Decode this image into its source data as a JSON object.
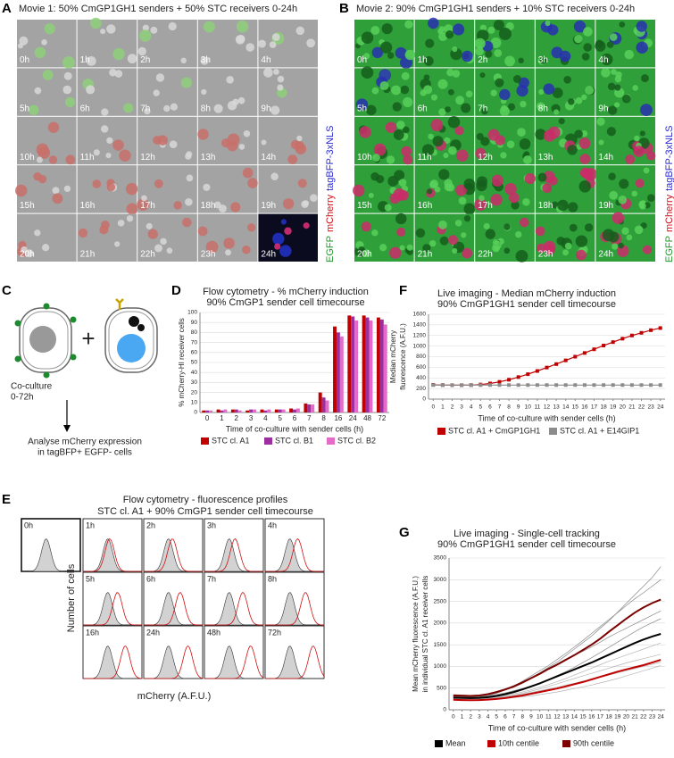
{
  "panel_A": {
    "letter": "A",
    "title": "Movie 1: 50% CmGP1GH1 senders + 50% STC receivers 0-24h",
    "frames": [
      "0h",
      "1h",
      "2h",
      "3h",
      "4h",
      "5h",
      "6h",
      "7h",
      "8h",
      "9h",
      "10h",
      "11h",
      "12h",
      "13h",
      "14h",
      "15h",
      "16h",
      "17h",
      "18h",
      "19h",
      "20h",
      "21h",
      "22h",
      "23h",
      "24h"
    ],
    "channels": [
      {
        "text": "EGFP",
        "color": "#1f9a2a"
      },
      {
        "text": "mCherry",
        "color": "#d0101a"
      },
      {
        "text": "tagBFP-3xNLS",
        "color": "#2a2ad0"
      }
    ]
  },
  "panel_B": {
    "letter": "B",
    "title": "Movie 2: 90% CmGP1GH1 senders + 10% STC receivers 0-24h",
    "frames": [
      "0h",
      "1h",
      "2h",
      "3h",
      "4h",
      "5h",
      "6h",
      "7h",
      "8h",
      "9h",
      "10h",
      "11h",
      "12h",
      "13h",
      "14h",
      "15h",
      "16h",
      "17h",
      "18h",
      "19h",
      "20h",
      "21h",
      "22h",
      "23h",
      "24h"
    ],
    "channels": [
      {
        "text": "EGFP",
        "color": "#1f9a2a"
      },
      {
        "text": "mCherry",
        "color": "#d0101a"
      },
      {
        "text": "tagBFP-3xNLS",
        "color": "#2a2ad0"
      }
    ]
  },
  "panel_C": {
    "letter": "C",
    "plus": "+",
    "step": [
      "Co-culture",
      "0-72h"
    ],
    "result": [
      "Analyse mCherry expression",
      "in tagBFP+ EGFP- cells"
    ]
  },
  "panel_E": {
    "letter": "E",
    "title": "Flow cytometry - fluorescence profiles",
    "subtitle": "STC cl. A1 + 90% CmGP1 sender cell timecourse",
    "timepoints": [
      "0h",
      "1h",
      "2h",
      "3h",
      "4h",
      "5h",
      "6h",
      "7h",
      "8h",
      "16h",
      "24h",
      "48h",
      "72h"
    ],
    "xlabel": "mCherry (A.F.U.)",
    "ylabel": "Number of cells"
  },
  "chart_data": [
    {
      "type": "bar",
      "panel": "D",
      "title": "Flow cytometry - % mCherry induction",
      "subtitle": "90% CmGP1 sender cell timecourse",
      "categories": [
        "0",
        "1",
        "2",
        "3",
        "4",
        "5",
        "6",
        "7",
        "8",
        "16",
        "24",
        "48",
        "72"
      ],
      "series": [
        {
          "name": "STC cl. A1",
          "color": "#c00000",
          "values": [
            2,
            3,
            3,
            2,
            3,
            3,
            4,
            9,
            20,
            86,
            97,
            97,
            95
          ]
        },
        {
          "name": "STC cl. B1",
          "color": "#9b2fa0",
          "values": [
            2,
            2,
            3,
            3,
            2,
            3,
            3,
            8,
            15,
            80,
            96,
            95,
            93
          ]
        },
        {
          "name": "STC cl. B2",
          "color": "#e46bc8",
          "values": [
            2,
            3,
            2,
            3,
            3,
            3,
            4,
            8,
            12,
            76,
            92,
            92,
            88
          ]
        }
      ],
      "ylim": [
        0,
        100
      ],
      "yticks": [
        0,
        10,
        20,
        30,
        40,
        50,
        60,
        70,
        80,
        90,
        100
      ],
      "ylabel": "% mCherry-HI receiver cells",
      "xlabel": "Time of co-culture with sender cells (h)"
    },
    {
      "type": "line",
      "panel": "F",
      "title": "Live imaging - Median mCherry induction",
      "subtitle": "90% CmGP1GH1 sender cell timecourse",
      "x": [
        0,
        1,
        2,
        3,
        4,
        5,
        6,
        7,
        8,
        9,
        10,
        11,
        12,
        13,
        14,
        15,
        16,
        17,
        18,
        19,
        20,
        21,
        22,
        23,
        24
      ],
      "series": [
        {
          "name": "STC cl. A1 + CmGP1GH1",
          "color": "#c00000",
          "values": [
            270,
            265,
            262,
            262,
            265,
            275,
            295,
            325,
            365,
            415,
            470,
            530,
            595,
            660,
            730,
            800,
            870,
            940,
            1010,
            1075,
            1140,
            1200,
            1250,
            1300,
            1340
          ]
        },
        {
          "name": "STC cl. A1 + E14GIP1",
          "color": "#8c8c8c",
          "values": [
            265,
            265,
            264,
            264,
            264,
            264,
            265,
            265,
            265,
            265,
            265,
            265,
            265,
            265,
            265,
            265,
            265,
            265,
            265,
            265,
            265,
            265,
            265,
            265,
            265
          ]
        }
      ],
      "xlim": [
        -0.5,
        24.5
      ],
      "xticks": [
        0,
        1,
        2,
        3,
        4,
        5,
        6,
        7,
        8,
        9,
        10,
        11,
        12,
        13,
        14,
        15,
        16,
        17,
        18,
        19,
        20,
        21,
        22,
        23,
        24
      ],
      "ylim": [
        0,
        1600
      ],
      "yticks": [
        0,
        200,
        400,
        600,
        800,
        1000,
        1200,
        1400,
        1600
      ],
      "markers": true,
      "ylabel_lines": [
        "Median mCherry",
        "fluorescence (A.F.U.)"
      ],
      "xlabel": "Time of co-culture with sender cells (h)"
    },
    {
      "type": "line",
      "panel": "G",
      "title": "Live imaging - Single-cell tracking",
      "subtitle": "90% CmGP1GH1 sender cell timecourse",
      "x": [
        0,
        1,
        2,
        3,
        4,
        5,
        6,
        7,
        8,
        9,
        10,
        11,
        12,
        13,
        14,
        15,
        16,
        17,
        18,
        19,
        20,
        21,
        22,
        23,
        24
      ],
      "series": [
        {
          "name": "Mean",
          "color": "#000000",
          "values": [
            280,
            275,
            270,
            275,
            290,
            320,
            360,
            410,
            470,
            540,
            610,
            690,
            770,
            850,
            930,
            1010,
            1090,
            1180,
            1270,
            1360,
            1450,
            1540,
            1620,
            1690,
            1750
          ]
        },
        {
          "name": "10th centile",
          "color": "#c00000",
          "values": [
            230,
            225,
            220,
            225,
            235,
            250,
            270,
            300,
            330,
            370,
            410,
            450,
            490,
            540,
            590,
            640,
            700,
            760,
            820,
            880,
            930,
            980,
            1030,
            1090,
            1150
          ]
        },
        {
          "name": "90th centile",
          "color": "#7b0000",
          "values": [
            330,
            325,
            320,
            330,
            360,
            410,
            470,
            540,
            630,
            730,
            830,
            940,
            1040,
            1150,
            1260,
            1380,
            1500,
            1640,
            1800,
            1950,
            2100,
            2240,
            2360,
            2460,
            2540
          ]
        }
      ],
      "cell_traces": [
        [
          300,
          290,
          280,
          300,
          330,
          380,
          450,
          520,
          610,
          720,
          850,
          980,
          1100,
          1250,
          1400,
          1550,
          1700,
          1880,
          2050,
          2250,
          2450,
          2650,
          2850,
          3050,
          3300
        ],
        [
          250,
          240,
          230,
          240,
          250,
          270,
          300,
          330,
          360,
          400,
          440,
          480,
          520,
          570,
          610,
          660,
          700,
          750,
          800,
          850,
          900,
          950,
          1000,
          1050,
          1100
        ],
        [
          350,
          340,
          330,
          340,
          370,
          420,
          480,
          560,
          650,
          740,
          850,
          960,
          1060,
          1170,
          1260,
          1350,
          1450,
          1560,
          1680,
          1780,
          1880,
          1980,
          2080,
          2180,
          2280
        ],
        [
          280,
          270,
          260,
          270,
          280,
          300,
          330,
          370,
          410,
          460,
          520,
          580,
          650,
          720,
          800,
          880,
          960,
          1040,
          1120,
          1190,
          1260,
          1330,
          1400,
          1470,
          1540
        ],
        [
          320,
          310,
          300,
          310,
          340,
          390,
          460,
          550,
          660,
          780,
          900,
          1020,
          1160,
          1300,
          1450,
          1600,
          1760,
          1920,
          2080,
          2240,
          2400,
          2560,
          2700,
          2850,
          3000
        ],
        [
          230,
          220,
          215,
          220,
          230,
          240,
          260,
          280,
          300,
          320,
          350,
          380,
          410,
          450,
          490,
          530,
          570,
          620,
          670,
          720,
          780,
          840,
          900,
          960,
          1020
        ],
        [
          300,
          295,
          290,
          300,
          320,
          350,
          390,
          440,
          490,
          550,
          620,
          700,
          790,
          880,
          980,
          1090,
          1200,
          1320,
          1440,
          1560,
          1680,
          1800,
          1910,
          2010,
          2100
        ],
        [
          260,
          255,
          250,
          255,
          265,
          285,
          310,
          340,
          380,
          430,
          480,
          540,
          600,
          660,
          720,
          780,
          840,
          900,
          960,
          1020,
          1080,
          1130,
          1180,
          1230,
          1280
        ]
      ],
      "xlim": [
        -0.5,
        24.5
      ],
      "xticks": [
        0,
        1,
        2,
        3,
        4,
        5,
        6,
        7,
        8,
        9,
        10,
        11,
        12,
        13,
        14,
        15,
        16,
        17,
        18,
        19,
        20,
        21,
        22,
        23,
        24
      ],
      "ylim": [
        0,
        3500
      ],
      "yticks": [
        0,
        500,
        1000,
        1500,
        2000,
        2500,
        3000,
        3500
      ],
      "markers": false,
      "ylabel_lines": [
        "Mean mCherry fluorescence (A.F.U.)",
        "in individual STC cl. A1 receiver cells"
      ],
      "xlabel": "Time of co-culture with sender cells (h)"
    }
  ]
}
